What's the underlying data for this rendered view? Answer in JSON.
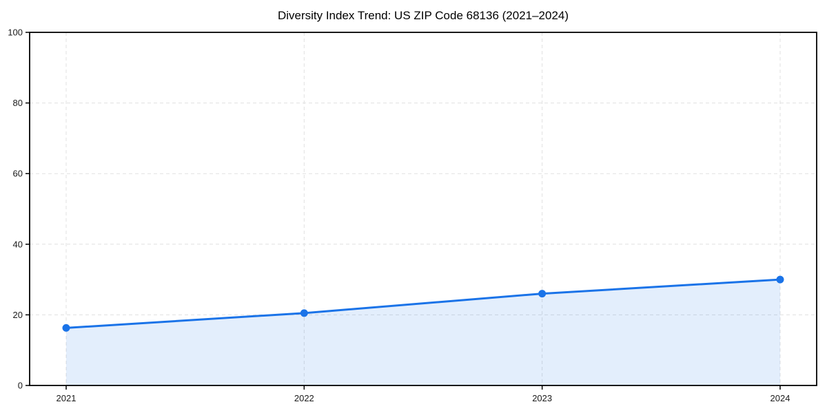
{
  "figure": {
    "title": "Diversity Index Trend: US ZIP Code 68136 (2021–2024)"
  },
  "chart_data": {
    "type": "line",
    "title": "Diversity Index Trend: US ZIP Code 68136 (2021–2024)",
    "x": [
      "2021",
      "2022",
      "2023",
      "2024"
    ],
    "series": [
      {
        "name": "Diversity Index",
        "values": [
          16.3,
          20.5,
          26.0,
          30.0
        ]
      }
    ],
    "xlabel": "",
    "ylabel": "",
    "ylim": [
      0,
      100
    ],
    "yticks": [
      0,
      20,
      40,
      60,
      80,
      100
    ],
    "grid": "dashed, both axes",
    "legend": "none",
    "area_fill": true,
    "marker": "circle",
    "colors": {
      "line": "#1a73e8",
      "marker": "#1a73e8",
      "area_fill": "#1a73e8",
      "area_fill_opacity": 0.12,
      "gridline": "#e0e0e0",
      "axis": "#000000",
      "tick_label": "#1a1a1a",
      "title": "#000000",
      "background": "#ffffff"
    }
  }
}
